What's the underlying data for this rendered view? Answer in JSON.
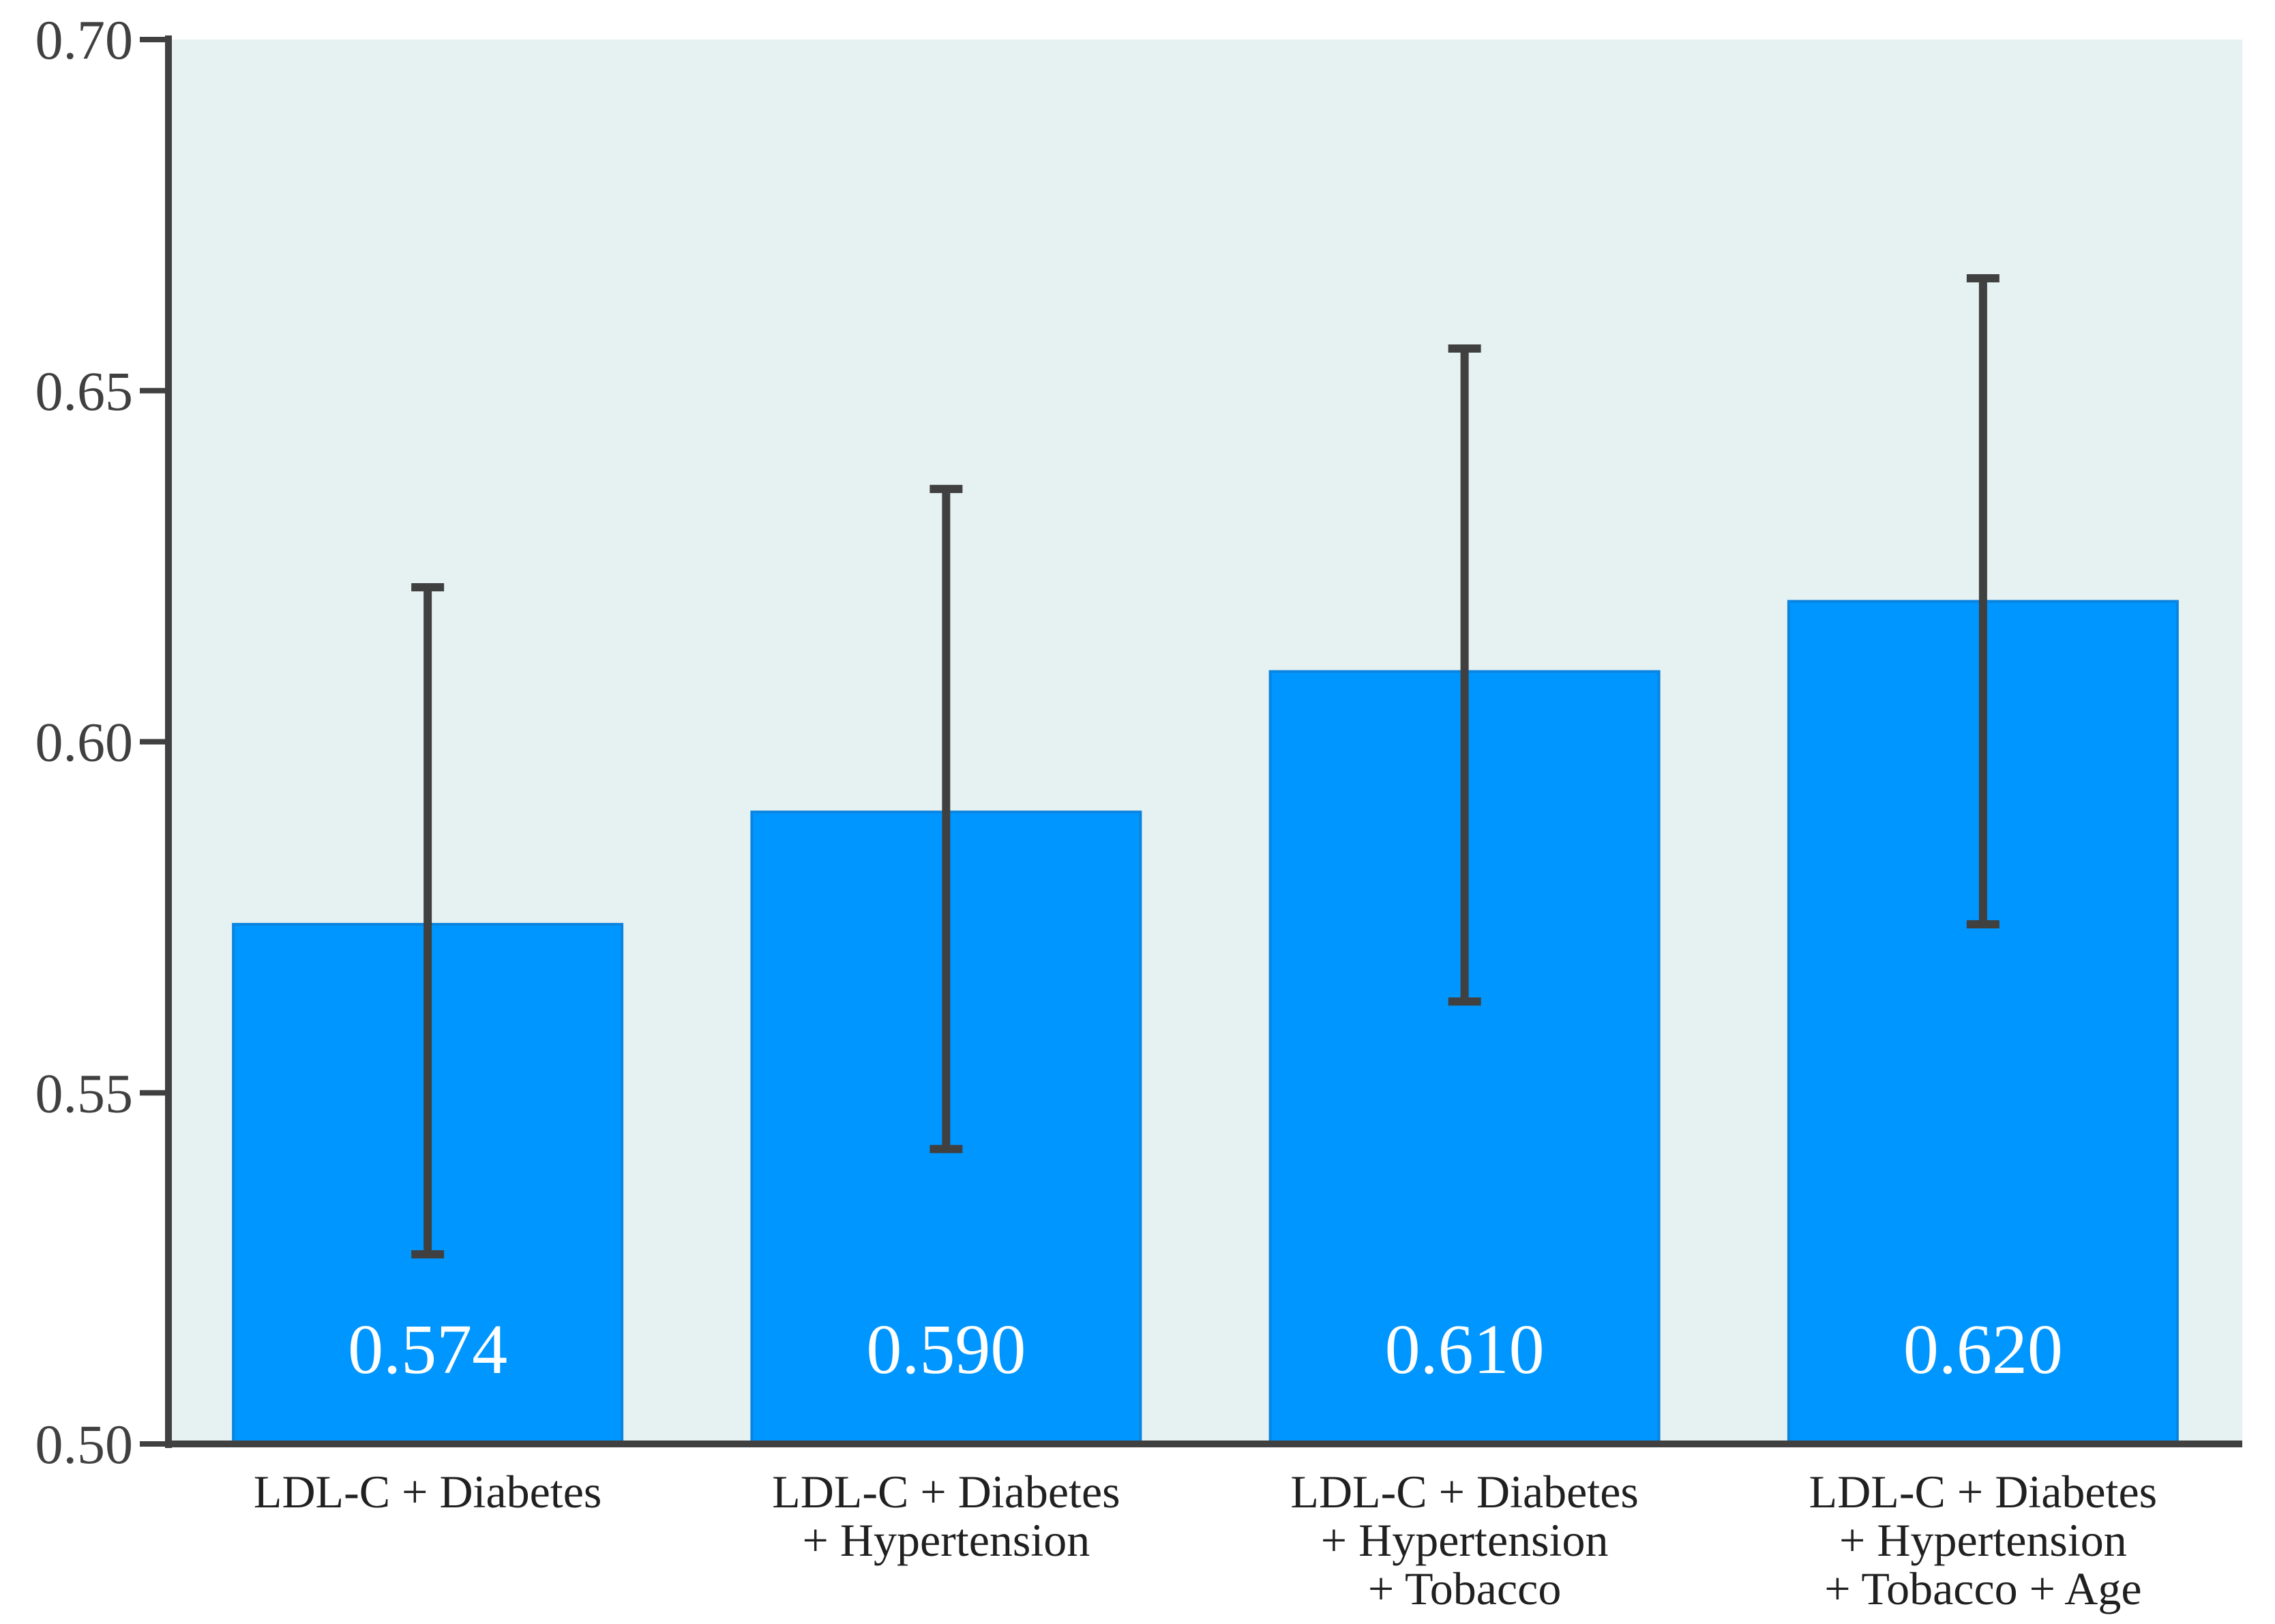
{
  "chart_data": {
    "type": "bar",
    "title": "",
    "xlabel": "",
    "ylabel": "",
    "ylim": [
      0.5,
      0.7
    ],
    "yticks": [
      "0.50",
      "0.55",
      "0.60",
      "0.65",
      "0.70"
    ],
    "categories": [
      [
        "LDL-C + Diabetes"
      ],
      [
        "LDL-C + Diabetes",
        "+ Hypertension"
      ],
      [
        "LDL-C + Diabetes",
        "+ Hypertension",
        "+ Tobacco"
      ],
      [
        "LDL-C + Diabetes",
        "+ Hypertension",
        "+ Tobacco + Age"
      ]
    ],
    "values": [
      0.574,
      0.59,
      0.61,
      0.62
    ],
    "value_labels": [
      "0.574",
      "0.590",
      "0.610",
      "0.620"
    ],
    "error_low": [
      0.527,
      0.542,
      0.563,
      0.574
    ],
    "error_high": [
      0.622,
      0.636,
      0.656,
      0.666
    ],
    "grid": false,
    "colors": {
      "bar": "#0096ff",
      "bar_edge": "#0a84e0",
      "plot_background": "#e6f1f1",
      "axis": "#404040",
      "error_bar": "#404040"
    }
  }
}
